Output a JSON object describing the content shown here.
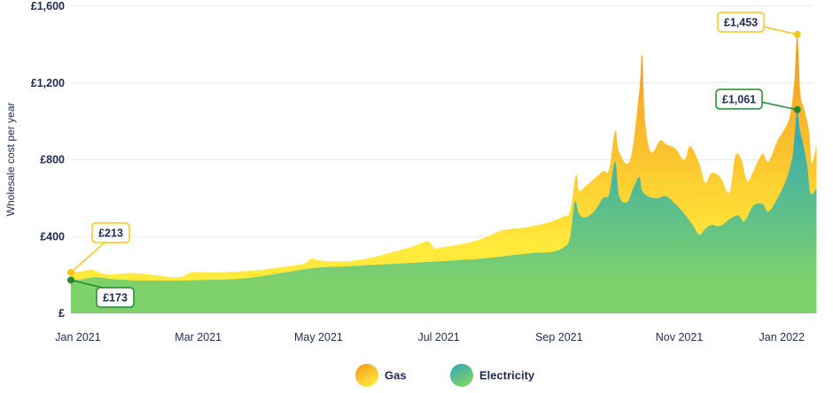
{
  "chart_data": {
    "type": "area",
    "ylabel": "Wholesale cost per year",
    "y_ticks": [
      "£",
      "£400",
      "£800",
      "£1,200",
      "£1,600"
    ],
    "ylim": [
      0,
      1600
    ],
    "x_ticks": [
      "Jan 2021",
      "Mar 2021",
      "May 2021",
      "Jul 2021",
      "Sep 2021",
      "Nov 2021",
      "Jan 2022"
    ],
    "x_tick_months": [
      0,
      2,
      4,
      6,
      8,
      10,
      12
    ],
    "xlim_months": [
      0,
      12.35
    ],
    "colors": {
      "gas_top": "#f7941d",
      "gas_bottom": "#ffe93b",
      "elec_top": "#2fa5b8",
      "elec_bottom": "#7fd26b",
      "gas_accent": "#f5c518",
      "elec_accent": "#1f8a2f",
      "axis_text": "#1f2a55",
      "grid": "#e3e9f3"
    },
    "series": [
      {
        "name": "Gas",
        "points": [
          [
            0,
            213
          ],
          [
            0.2,
            220
          ],
          [
            0.35,
            228
          ],
          [
            0.5,
            210
          ],
          [
            0.65,
            202
          ],
          [
            0.85,
            206
          ],
          [
            1.0,
            210
          ],
          [
            1.2,
            205
          ],
          [
            1.5,
            195
          ],
          [
            1.7,
            188
          ],
          [
            1.85,
            190
          ],
          [
            2.0,
            212
          ],
          [
            2.4,
            214
          ],
          [
            2.8,
            218
          ],
          [
            3.2,
            228
          ],
          [
            3.6,
            245
          ],
          [
            3.9,
            262
          ],
          [
            4.0,
            285
          ],
          [
            4.2,
            272
          ],
          [
            4.5,
            270
          ],
          [
            4.7,
            275
          ],
          [
            5.0,
            290
          ],
          [
            5.3,
            315
          ],
          [
            5.6,
            340
          ],
          [
            5.8,
            362
          ],
          [
            5.95,
            375
          ],
          [
            6.05,
            340
          ],
          [
            6.2,
            345
          ],
          [
            6.5,
            360
          ],
          [
            6.8,
            385
          ],
          [
            7.0,
            410
          ],
          [
            7.2,
            435
          ],
          [
            7.5,
            445
          ],
          [
            7.7,
            455
          ],
          [
            7.9,
            470
          ],
          [
            8.05,
            485
          ],
          [
            8.2,
            505
          ],
          [
            8.3,
            530
          ],
          [
            8.4,
            720
          ],
          [
            8.45,
            640
          ],
          [
            8.55,
            660
          ],
          [
            8.7,
            700
          ],
          [
            8.85,
            740
          ],
          [
            8.95,
            750
          ],
          [
            9.05,
            950
          ],
          [
            9.12,
            840
          ],
          [
            9.3,
            800
          ],
          [
            9.45,
            1150
          ],
          [
            9.5,
            1345
          ],
          [
            9.55,
            1000
          ],
          [
            9.65,
            840
          ],
          [
            9.8,
            900
          ],
          [
            9.9,
            880
          ],
          [
            10.05,
            860
          ],
          [
            10.2,
            800
          ],
          [
            10.3,
            870
          ],
          [
            10.45,
            780
          ],
          [
            10.55,
            680
          ],
          [
            10.65,
            730
          ],
          [
            10.8,
            710
          ],
          [
            10.95,
            630
          ],
          [
            11.05,
            820
          ],
          [
            11.15,
            800
          ],
          [
            11.25,
            690
          ],
          [
            11.35,
            740
          ],
          [
            11.5,
            830
          ],
          [
            11.6,
            790
          ],
          [
            11.75,
            900
          ],
          [
            11.85,
            950
          ],
          [
            11.95,
            1020
          ],
          [
            12.03,
            1200
          ],
          [
            12.08,
            1453
          ],
          [
            12.13,
            1150
          ],
          [
            12.2,
            1060
          ],
          [
            12.28,
            940
          ],
          [
            12.32,
            780
          ],
          [
            12.4,
            880
          ]
        ]
      },
      {
        "name": "Electricity",
        "points": [
          [
            0,
            173
          ],
          [
            0.15,
            176
          ],
          [
            0.3,
            184
          ],
          [
            0.45,
            188
          ],
          [
            0.6,
            182
          ],
          [
            0.75,
            176
          ],
          [
            0.9,
            174
          ],
          [
            1.0,
            172
          ],
          [
            1.3,
            171
          ],
          [
            1.6,
            170
          ],
          [
            2.0,
            172
          ],
          [
            2.4,
            175
          ],
          [
            2.8,
            180
          ],
          [
            3.2,
            195
          ],
          [
            3.6,
            215
          ],
          [
            3.9,
            230
          ],
          [
            4.2,
            240
          ],
          [
            4.6,
            245
          ],
          [
            5.0,
            252
          ],
          [
            5.4,
            258
          ],
          [
            5.8,
            265
          ],
          [
            6.2,
            272
          ],
          [
            6.6,
            280
          ],
          [
            7.0,
            290
          ],
          [
            7.4,
            305
          ],
          [
            7.7,
            315
          ],
          [
            8.0,
            320
          ],
          [
            8.2,
            345
          ],
          [
            8.3,
            395
          ],
          [
            8.38,
            580
          ],
          [
            8.45,
            520
          ],
          [
            8.55,
            500
          ],
          [
            8.7,
            530
          ],
          [
            8.85,
            600
          ],
          [
            8.95,
            620
          ],
          [
            9.05,
            790
          ],
          [
            9.12,
            610
          ],
          [
            9.25,
            580
          ],
          [
            9.35,
            650
          ],
          [
            9.45,
            710
          ],
          [
            9.5,
            640
          ],
          [
            9.6,
            610
          ],
          [
            9.75,
            600
          ],
          [
            9.9,
            610
          ],
          [
            10.05,
            570
          ],
          [
            10.2,
            520
          ],
          [
            10.35,
            455
          ],
          [
            10.45,
            410
          ],
          [
            10.55,
            440
          ],
          [
            10.65,
            460
          ],
          [
            10.8,
            455
          ],
          [
            10.95,
            490
          ],
          [
            11.1,
            510
          ],
          [
            11.2,
            480
          ],
          [
            11.35,
            560
          ],
          [
            11.5,
            570
          ],
          [
            11.6,
            530
          ],
          [
            11.75,
            600
          ],
          [
            11.9,
            700
          ],
          [
            12.0,
            820
          ],
          [
            12.05,
            980
          ],
          [
            12.08,
            1061
          ],
          [
            12.12,
            960
          ],
          [
            12.18,
            880
          ],
          [
            12.25,
            760
          ],
          [
            12.3,
            625
          ],
          [
            12.4,
            650
          ]
        ]
      }
    ],
    "annotations": [
      {
        "series": "Gas",
        "month": 0,
        "value": 213,
        "label": "£213"
      },
      {
        "series": "Electricity",
        "month": 0,
        "value": 173,
        "label": "£173"
      },
      {
        "series": "Gas",
        "month": 12.08,
        "value": 1453,
        "label": "£1,453"
      },
      {
        "series": "Electricity",
        "month": 12.08,
        "value": 1061,
        "label": "£1,061"
      }
    ],
    "legend": [
      {
        "name": "Gas",
        "label": "Gas"
      },
      {
        "name": "Electricity",
        "label": "Electricity"
      }
    ]
  }
}
